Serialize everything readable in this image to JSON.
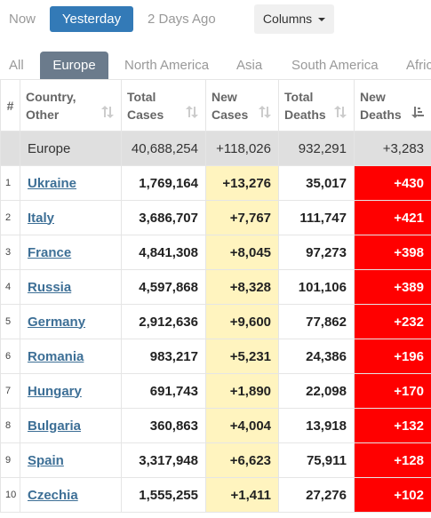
{
  "day_tabs": {
    "now": "Now",
    "yesterday": "Yesterday",
    "two_days_ago": "2 Days Ago"
  },
  "columns_button": "Columns",
  "region_tabs": {
    "all": "All",
    "europe": "Europe",
    "north_america": "North America",
    "asia": "Asia",
    "south_america": "South America",
    "africa": "Afric"
  },
  "headers": {
    "rank": "#",
    "country_1": "Country,",
    "country_2": "Other",
    "total_cases_1": "Total",
    "total_cases_2": "Cases",
    "new_cases_1": "New",
    "new_cases_2": "Cases",
    "total_deaths_1": "Total",
    "total_deaths_2": "Deaths",
    "new_deaths_1": "New",
    "new_deaths_2": "Deaths"
  },
  "total_row": {
    "country": "Europe",
    "total_cases": "40,688,254",
    "new_cases": "+118,026",
    "total_deaths": "932,291",
    "new_deaths": "+3,283"
  },
  "rows": [
    {
      "rank": "1",
      "country": "Ukraine",
      "total_cases": "1,769,164",
      "new_cases": "+13,276",
      "total_deaths": "35,017",
      "new_deaths": "+430"
    },
    {
      "rank": "2",
      "country": "Italy",
      "total_cases": "3,686,707",
      "new_cases": "+7,767",
      "total_deaths": "111,747",
      "new_deaths": "+421"
    },
    {
      "rank": "3",
      "country": "France",
      "total_cases": "4,841,308",
      "new_cases": "+8,045",
      "total_deaths": "97,273",
      "new_deaths": "+398"
    },
    {
      "rank": "4",
      "country": "Russia",
      "total_cases": "4,597,868",
      "new_cases": "+8,328",
      "total_deaths": "101,106",
      "new_deaths": "+389"
    },
    {
      "rank": "5",
      "country": "Germany",
      "total_cases": "2,912,636",
      "new_cases": "+9,600",
      "total_deaths": "77,862",
      "new_deaths": "+232"
    },
    {
      "rank": "6",
      "country": "Romania",
      "total_cases": "983,217",
      "new_cases": "+5,231",
      "total_deaths": "24,386",
      "new_deaths": "+196"
    },
    {
      "rank": "7",
      "country": "Hungary",
      "total_cases": "691,743",
      "new_cases": "+1,890",
      "total_deaths": "22,098",
      "new_deaths": "+170"
    },
    {
      "rank": "8",
      "country": "Bulgaria",
      "total_cases": "360,863",
      "new_cases": "+4,004",
      "total_deaths": "13,918",
      "new_deaths": "+132"
    },
    {
      "rank": "9",
      "country": "Spain",
      "total_cases": "3,317,948",
      "new_cases": "+6,623",
      "total_deaths": "75,911",
      "new_deaths": "+128"
    },
    {
      "rank": "10",
      "country": "Czechia",
      "total_cases": "1,555,255",
      "new_cases": "+1,411",
      "total_deaths": "27,276",
      "new_deaths": "+102"
    }
  ],
  "colors": {
    "active_tab": "#337ab7",
    "region_tab": "#6b7b8c",
    "new_cases_bg": "#fff4bf",
    "new_deaths_bg": "#ff0000",
    "link": "#3d6f96"
  },
  "icons": {
    "sort": "sort-arrows-icon",
    "sort_active": "sort-descending-icon",
    "caret": "caret-down-icon"
  }
}
